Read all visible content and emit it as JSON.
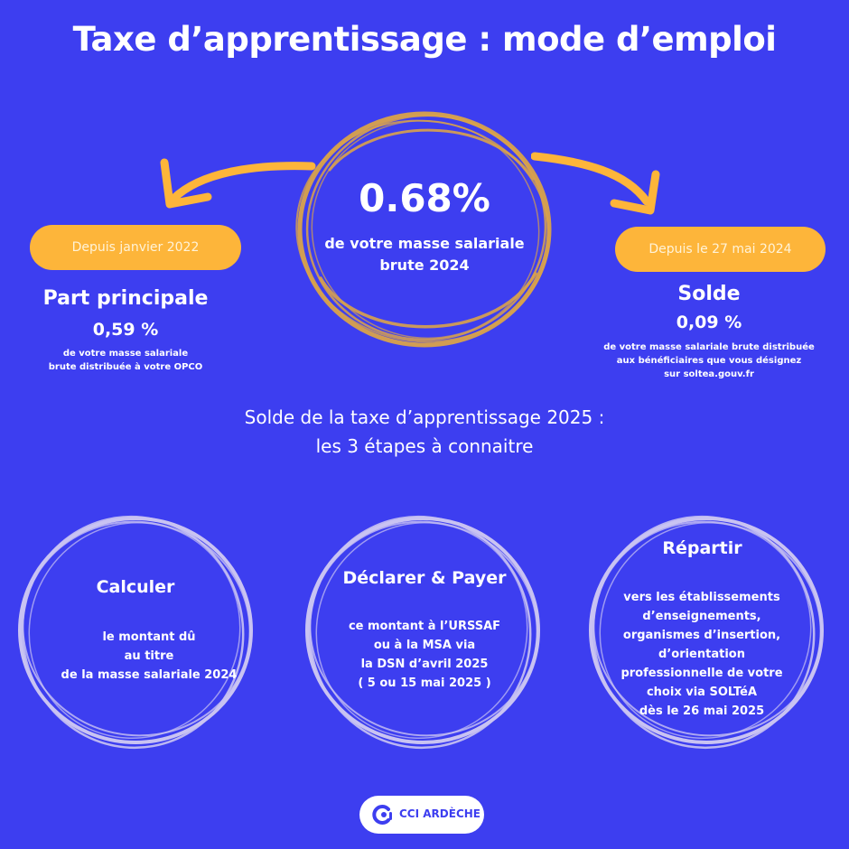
{
  "title": "Taxe d’apprentissage : mode d’emploi",
  "center": {
    "percent": "0.68%",
    "description_line1": "de votre masse salariale",
    "description_line2": "brute 2024"
  },
  "left": {
    "pill": "Depuis janvier 2022",
    "title": "Part principale",
    "percent": "0,59 %",
    "desc_line1": "de votre masse salariale",
    "desc_line2": "brute distribuée à votre OPCO"
  },
  "right": {
    "pill": "Depuis le 27 mai 2024",
    "title": "Solde",
    "percent": "0,09 %",
    "desc_line1": "de votre masse salariale brute distribuée",
    "desc_line2": "aux bénéficiaires que vous désignez",
    "desc_line3": "sur soltea.gouv.fr"
  },
  "steps_heading": {
    "line1": "Solde de la taxe d’apprentissage 2025 :",
    "line2": "les 3 étapes à connaitre"
  },
  "steps": [
    {
      "title": "Calculer",
      "lines": [
        "le montant dû",
        "au titre",
        "de la masse salariale 2024"
      ]
    },
    {
      "title": "Déclarer & Payer",
      "lines": [
        "ce montant à l’URSSAF",
        "ou à la MSA via",
        "la DSN d’avril 2025",
        "( 5 ou 15 mai 2025 )"
      ]
    },
    {
      "title": "Répartir",
      "lines": [
        "vers les établissements",
        "d’enseignements,",
        "organismes d’insertion,",
        "d’orientation",
        "professionnelle de votre",
        "choix via SOLTéA",
        "dès le 26 mai 2025"
      ]
    }
  ],
  "logo": {
    "text": "CCI ARDÈCHE"
  },
  "colors": {
    "background": "#3d3ef0",
    "accent_orange": "#fdb53a",
    "ring_gold": "#d9a24a",
    "ring_lavender": "#c9c3f2"
  }
}
